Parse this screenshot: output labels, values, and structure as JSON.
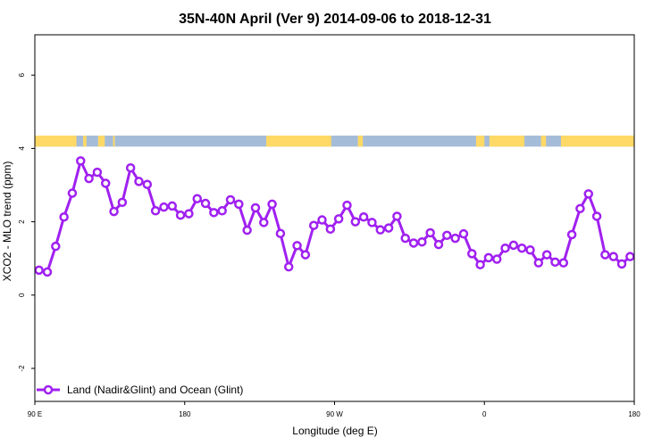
{
  "chart_data": {
    "type": "line",
    "title": "35N-40N April (Ver 9)   2014-09-06 to 2018-12-31",
    "xlabel": "Longitude (deg E)",
    "ylabel": "XCO2 - MLO trend (ppm)",
    "xlim": [
      90,
      450
    ],
    "ylim": [
      -2.9,
      7.1
    ],
    "x_ticks": [
      {
        "value": 90,
        "label": "90 E"
      },
      {
        "value": 180,
        "label": "180"
      },
      {
        "value": 270,
        "label": "90 W"
      },
      {
        "value": 360,
        "label": "0"
      },
      {
        "value": 450,
        "label": "180"
      }
    ],
    "y_ticks": [
      {
        "value": -2,
        "label": "-2"
      },
      {
        "value": 0,
        "label": "0"
      },
      {
        "value": 2,
        "label": "2"
      },
      {
        "value": 4,
        "label": "4"
      },
      {
        "value": 6,
        "label": "6"
      }
    ],
    "grid": false,
    "legend_position": "bottom-left",
    "colors": {
      "series": "#a020f0",
      "land": "#ffd966",
      "ocean": "#a5bcd8"
    },
    "land_ocean_strip": {
      "y_range": [
        4.05,
        4.35
      ],
      "land_segments": [
        [
          90,
          115
        ],
        [
          119,
          121
        ],
        [
          128,
          132
        ],
        [
          137,
          138
        ],
        [
          229,
          268
        ],
        [
          284,
          287
        ],
        [
          355,
          360
        ],
        [
          363,
          384
        ],
        [
          394,
          397
        ],
        [
          406,
          452
        ]
      ]
    },
    "series": [
      {
        "name": "Land (Nadir&Glint) and Ocean (Glint)",
        "x": [
          92.5,
          97.5,
          102.5,
          107.5,
          112.5,
          117.5,
          122.5,
          127.5,
          132.5,
          137.5,
          142.5,
          147.5,
          152.5,
          157.5,
          162.5,
          167.5,
          172.5,
          177.5,
          182.5,
          187.5,
          192.5,
          197.5,
          202.5,
          207.5,
          212.5,
          217.5,
          222.5,
          227.5,
          232.5,
          237.5,
          242.5,
          247.5,
          252.5,
          257.5,
          262.5,
          267.5,
          272.5,
          277.5,
          282.5,
          287.5,
          292.5,
          297.5,
          302.5,
          307.5,
          312.5,
          317.5,
          322.5,
          327.5,
          332.5,
          337.5,
          342.5,
          347.5,
          352.5,
          357.5,
          362.5,
          367.5,
          372.5,
          377.5,
          382.5,
          387.5,
          392.5,
          397.5,
          402.5,
          407.5,
          412.5,
          417.5,
          422.5,
          427.5,
          432.5,
          437.5,
          442.5,
          447.5
        ],
        "y": [
          0.68,
          0.63,
          1.33,
          2.13,
          2.78,
          3.66,
          3.18,
          3.35,
          3.05,
          2.28,
          2.53,
          3.47,
          3.1,
          3.02,
          2.3,
          2.4,
          2.43,
          2.18,
          2.22,
          2.63,
          2.5,
          2.25,
          2.3,
          2.6,
          2.48,
          1.77,
          2.38,
          1.98,
          2.48,
          1.68,
          0.77,
          1.35,
          1.1,
          1.9,
          2.05,
          1.8,
          2.08,
          2.45,
          2.0,
          2.13,
          1.98,
          1.78,
          1.83,
          2.15,
          1.55,
          1.42,
          1.45,
          1.7,
          1.38,
          1.63,
          1.55,
          1.67,
          1.13,
          0.83,
          1.02,
          0.98,
          1.28,
          1.36,
          1.28,
          1.23,
          0.88,
          1.1,
          0.9,
          0.88,
          1.65,
          2.36,
          2.76,
          2.15,
          1.1,
          1.05,
          0.85,
          1.05
        ]
      }
    ]
  }
}
